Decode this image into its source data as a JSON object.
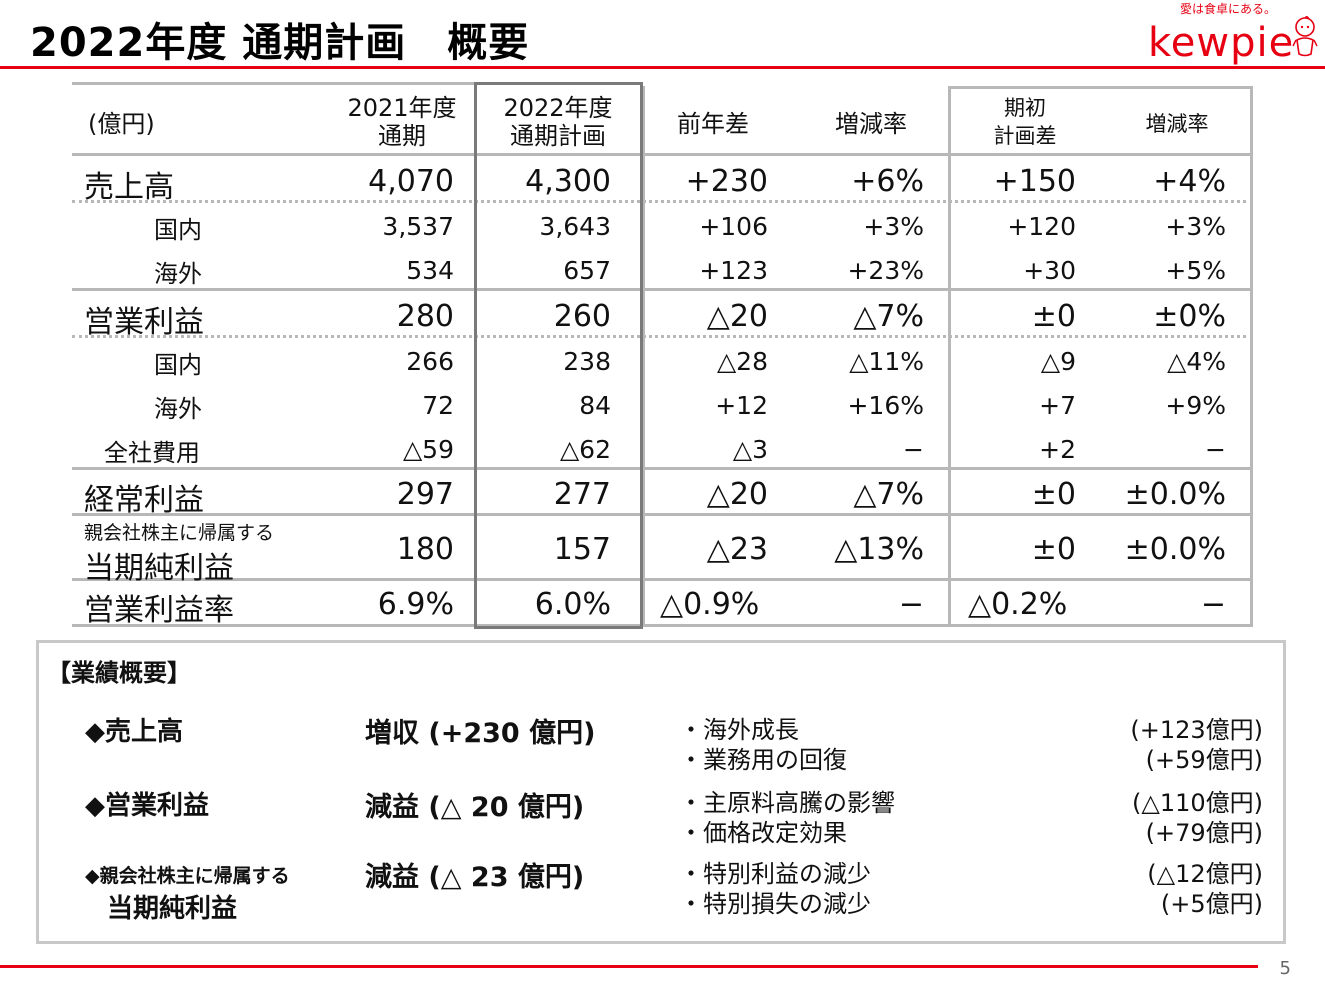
{
  "header": {
    "title": "2022年度 通期計画　概要",
    "logo_tagline": "愛は食卓にある。",
    "logo_word": "kewpie"
  },
  "table": {
    "unit": "(億円)",
    "col_2021": [
      "2021年度",
      "通期"
    ],
    "col_2022": [
      "2022年度",
      "通期計画"
    ],
    "col_yoy": "前年差",
    "col_yoy_rate": "増減率",
    "col_plan": [
      "期初",
      "計画差"
    ],
    "col_plan_rate": "増減率",
    "rows": [
      {
        "label": "売上高",
        "v2021": "4,070",
        "v2022": "4,300",
        "yoy": "+230",
        "yoy_rate": "+6%",
        "plan": "+150",
        "plan_rate": "+4%"
      },
      {
        "label": "国内",
        "v2021": "3,537",
        "v2022": "3,643",
        "yoy": "+106",
        "yoy_rate": "+3%",
        "plan": "+120",
        "plan_rate": "+3%"
      },
      {
        "label": "海外",
        "v2021": "534",
        "v2022": "657",
        "yoy": "+123",
        "yoy_rate": "+23%",
        "plan": "+30",
        "plan_rate": "+5%"
      },
      {
        "label": "営業利益",
        "v2021": "280",
        "v2022": "260",
        "yoy": "△20",
        "yoy_rate": "△7%",
        "plan": "±0",
        "plan_rate": "±0%"
      },
      {
        "label": "国内",
        "v2021": "266",
        "v2022": "238",
        "yoy": "△28",
        "yoy_rate": "△11%",
        "plan": "△9",
        "plan_rate": "△4%"
      },
      {
        "label": "海外",
        "v2021": "72",
        "v2022": "84",
        "yoy": "+12",
        "yoy_rate": "+16%",
        "plan": "+7",
        "plan_rate": "+9%"
      },
      {
        "label": "全社費用",
        "v2021": "△59",
        "v2022": "△62",
        "yoy": "△3",
        "yoy_rate": "−",
        "plan": "+2",
        "plan_rate": "−"
      },
      {
        "label": "経常利益",
        "v2021": "297",
        "v2022": "277",
        "yoy": "△20",
        "yoy_rate": "△7%",
        "plan": "±0",
        "plan_rate": "±0.0%"
      },
      {
        "label_small": "親会社株主に帰属する",
        "label": "当期純利益",
        "v2021": "180",
        "v2022": "157",
        "yoy": "△23",
        "yoy_rate": "△13%",
        "plan": "±0",
        "plan_rate": "±0.0%"
      },
      {
        "label": "営業利益率",
        "v2021": "6.9%",
        "v2022": "6.0%",
        "yoy": "△0.9%",
        "yoy_rate": "−",
        "plan": "△0.2%",
        "plan_rate": "−"
      }
    ]
  },
  "summary": {
    "heading": "【業績概要】",
    "items": [
      {
        "title": "◆売上高",
        "result": "増収 (+230 億円)",
        "reasons": [
          "・海外成長",
          "・業務用の回復"
        ],
        "amounts": [
          "(+123億円)",
          "(+59億円)"
        ]
      },
      {
        "title": "◆営業利益",
        "result": "減益 (△ 20 億円)",
        "reasons": [
          "・主原料高騰の影響",
          "・価格改定効果"
        ],
        "amounts": [
          "(△110億円)",
          "(+79億円)"
        ]
      },
      {
        "title_small": "◆親会社株主に帰属する",
        "title": "当期純利益",
        "result": "減益 (△ 23 億円)",
        "reasons": [
          "・特別利益の減少",
          "・特別損失の減少"
        ],
        "amounts": [
          "(△12億円)",
          "(+5億円)"
        ]
      }
    ]
  },
  "footer": {
    "page_number": "5"
  }
}
